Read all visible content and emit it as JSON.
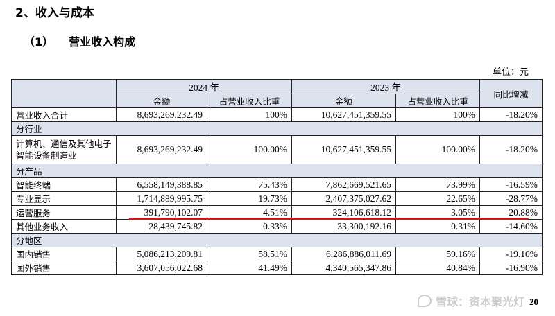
{
  "headings": {
    "section": "2、收入与成本",
    "sub_number": "（1）",
    "sub_title": "营业收入构成"
  },
  "unit_label": "单位：元",
  "table": {
    "header": {
      "year_2024": "2024 年",
      "year_2023": "2023 年",
      "yoy": "同比增减",
      "amount": "金额",
      "share": "占营业收入比重"
    },
    "total": {
      "label": "营业收入合计",
      "amount_2024": "8,693,269,232.49",
      "share_2024": "100%",
      "amount_2023": "10,627,451,359.55",
      "share_2023": "100%",
      "yoy": "-18.20%"
    },
    "by_industry": {
      "title": "分行业",
      "rows": [
        {
          "label": "计算机、通信及其他电子智能设备制造业",
          "amount_2024": "8,693,269,232.49",
          "share_2024": "100.00%",
          "amount_2023": "10,627,451,359.55",
          "share_2023": "100.00%",
          "yoy": "-18.20%"
        }
      ]
    },
    "by_product": {
      "title": "分产品",
      "rows": [
        {
          "label": "智能终端",
          "amount_2024": "6,558,149,388.85",
          "share_2024": "75.43%",
          "amount_2023": "7,862,669,521.65",
          "share_2023": "73.99%",
          "yoy": "-16.59%"
        },
        {
          "label": "专业显示",
          "amount_2024": "1,714,889,995.75",
          "share_2024": "19.73%",
          "amount_2023": "2,407,375,027.62",
          "share_2023": "22.65%",
          "yoy": "-28.77%"
        },
        {
          "label": "运营服务",
          "amount_2024": "391,790,102.07",
          "share_2024": "4.51%",
          "amount_2023": "324,106,618.12",
          "share_2023": "3.05%",
          "yoy": "20.88%"
        },
        {
          "label": "其他业务收入",
          "amount_2024": "28,439,745.82",
          "share_2024": "0.33%",
          "amount_2023": "33,300,192.16",
          "share_2023": "0.31%",
          "yoy": "-14.60%"
        }
      ]
    },
    "by_region": {
      "title": "分地区",
      "rows": [
        {
          "label": "国内销售",
          "amount_2024": "5,086,213,209.81",
          "share_2024": "58.51%",
          "amount_2023": "6,286,886,011.69",
          "share_2023": "59.16%",
          "yoy": "-19.10%"
        },
        {
          "label": "国外销售",
          "amount_2024": "3,607,056,022.68",
          "share_2024": "41.49%",
          "amount_2023": "4,340,565,347.86",
          "share_2023": "40.84%",
          "yoy": "-16.90%"
        }
      ]
    }
  },
  "watermark": "雪球：资本聚光灯",
  "page_number": "20",
  "colors": {
    "header_fill": "#dde3ee",
    "highlight_underline": "#d01515"
  }
}
